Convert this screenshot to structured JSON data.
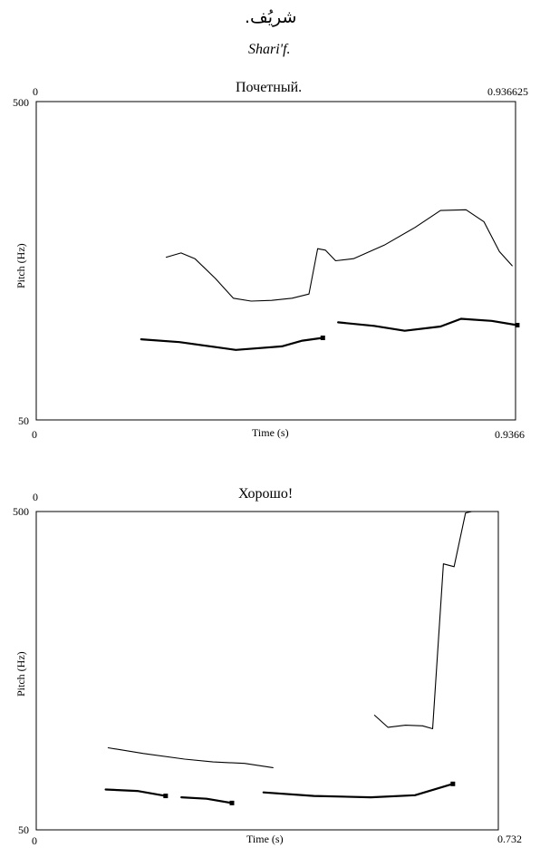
{
  "header": {
    "arabic": "شريُف.",
    "transliteration": "Shari'f."
  },
  "chart_data": [
    {
      "type": "line",
      "title": "Почетный.",
      "top_left_label": "0",
      "top_right_label": "0.936625",
      "xlabel": "Time (s)",
      "ylabel": "Pitch (Hz)",
      "xlim": [
        0,
        0.9366
      ],
      "ylim": [
        50,
        500
      ],
      "x_tick_labels": [
        "0",
        "0.9366"
      ],
      "y_tick_labels": [
        "500",
        "50"
      ],
      "series": [
        {
          "style": "thin",
          "segments": [
            [
              [
                0.254,
                280
              ],
              [
                0.283,
                286
              ],
              [
                0.31,
                278
              ],
              [
                0.35,
                250
              ],
              [
                0.385,
                222
              ],
              [
                0.42,
                218
              ],
              [
                0.46,
                219
              ],
              [
                0.5,
                222
              ],
              [
                0.533,
                228
              ],
              [
                0.55,
                292
              ],
              [
                0.565,
                290
              ],
              [
                0.585,
                275
              ],
              [
                0.62,
                278
              ],
              [
                0.68,
                297
              ],
              [
                0.74,
                322
              ],
              [
                0.79,
                346
              ],
              [
                0.84,
                347
              ],
              [
                0.875,
                330
              ],
              [
                0.905,
                288
              ],
              [
                0.93,
                268
              ]
            ]
          ]
        },
        {
          "style": "thick",
          "segments": [
            [
              [
                0.205,
                164
              ],
              [
                0.28,
                160
              ],
              [
                0.39,
                149
              ],
              [
                0.48,
                154
              ],
              [
                0.52,
                162
              ],
              [
                0.56,
                166
              ]
            ],
            [
              [
                0.59,
                188
              ],
              [
                0.66,
                183
              ],
              [
                0.72,
                176
              ],
              [
                0.79,
                182
              ],
              [
                0.83,
                193
              ],
              [
                0.89,
                190
              ],
              [
                0.94,
                184
              ]
            ]
          ]
        }
      ]
    },
    {
      "type": "line",
      "title": "Хорошо!",
      "top_left_label": "0",
      "xlabel": "Time (s)",
      "ylabel": "Pitch (Hz)",
      "xlim": [
        0,
        0.732
      ],
      "ylim": [
        50,
        500
      ],
      "x_tick_labels": [
        "0",
        "0.732"
      ],
      "y_tick_labels": [
        "500",
        "50"
      ],
      "series": [
        {
          "style": "thin",
          "segments": [
            [
              [
                0.114,
                166
              ],
              [
                0.17,
                158
              ],
              [
                0.235,
                150
              ],
              [
                0.28,
                146
              ],
              [
                0.33,
                144
              ],
              [
                0.375,
                138
              ]
            ],
            [
              [
                0.536,
                212
              ],
              [
                0.557,
                195
              ],
              [
                0.585,
                198
              ],
              [
                0.612,
                197
              ],
              [
                0.628,
                193
              ],
              [
                0.645,
                426
              ],
              [
                0.662,
                422
              ],
              [
                0.68,
                498
              ],
              [
                0.69,
                500
              ]
            ]
          ]
        },
        {
          "style": "thick",
          "segments": [
            [
              [
                0.11,
                107
              ],
              [
                0.16,
                105
              ],
              [
                0.205,
                98
              ]
            ],
            [
              [
                0.23,
                96
              ],
              [
                0.27,
                94
              ],
              [
                0.31,
                88
              ]
            ],
            [
              [
                0.36,
                103
              ],
              [
                0.44,
                98
              ],
              [
                0.53,
                96
              ],
              [
                0.6,
                99
              ],
              [
                0.66,
                115
              ]
            ]
          ]
        }
      ]
    }
  ]
}
